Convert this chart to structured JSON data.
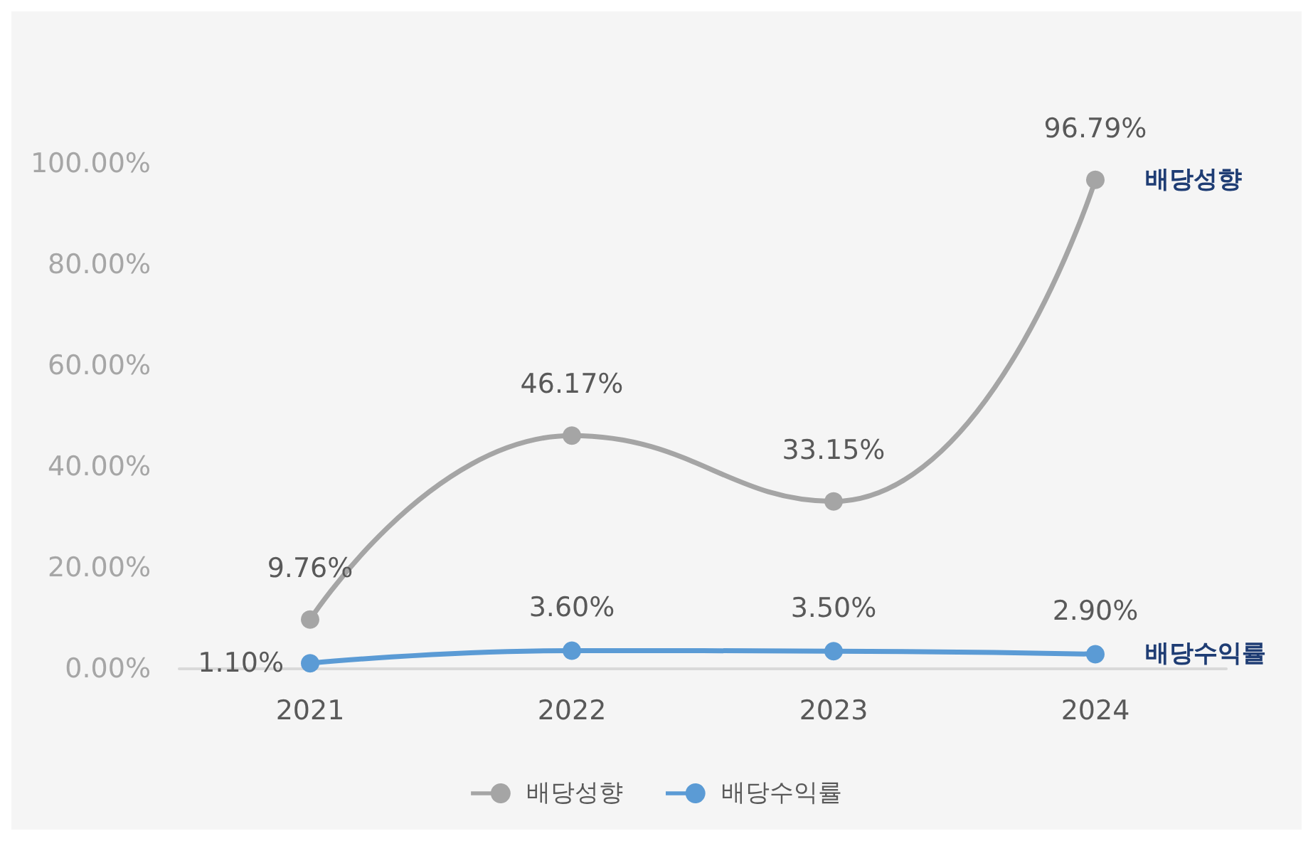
{
  "chart_data": {
    "type": "line",
    "categories": [
      "2021",
      "2022",
      "2023",
      "2024"
    ],
    "series": [
      {
        "name": "배당성향",
        "color": "#a5a5a5",
        "values": [
          9.76,
          46.17,
          33.15,
          96.79
        ],
        "value_labels": [
          "9.76%",
          "46.17%",
          "33.15%",
          "96.79%"
        ]
      },
      {
        "name": "배당수익률",
        "color": "#5b9bd5",
        "values": [
          1.1,
          3.6,
          3.5,
          2.9
        ],
        "value_labels": [
          "1.10%",
          "3.60%",
          "3.50%",
          "2.90%"
        ]
      }
    ],
    "ylim": [
      0,
      100
    ],
    "yticks": [
      {
        "value": 0,
        "label": "0.00%"
      },
      {
        "value": 20,
        "label": "20.00%"
      },
      {
        "value": 40,
        "label": "40.00%"
      },
      {
        "value": 60,
        "label": "60.00%"
      },
      {
        "value": 80,
        "label": "80.00%"
      },
      {
        "value": 100,
        "label": "100.00%"
      }
    ],
    "grid": false,
    "legend": "bottom",
    "marker": "circle",
    "line_style": "solid"
  }
}
